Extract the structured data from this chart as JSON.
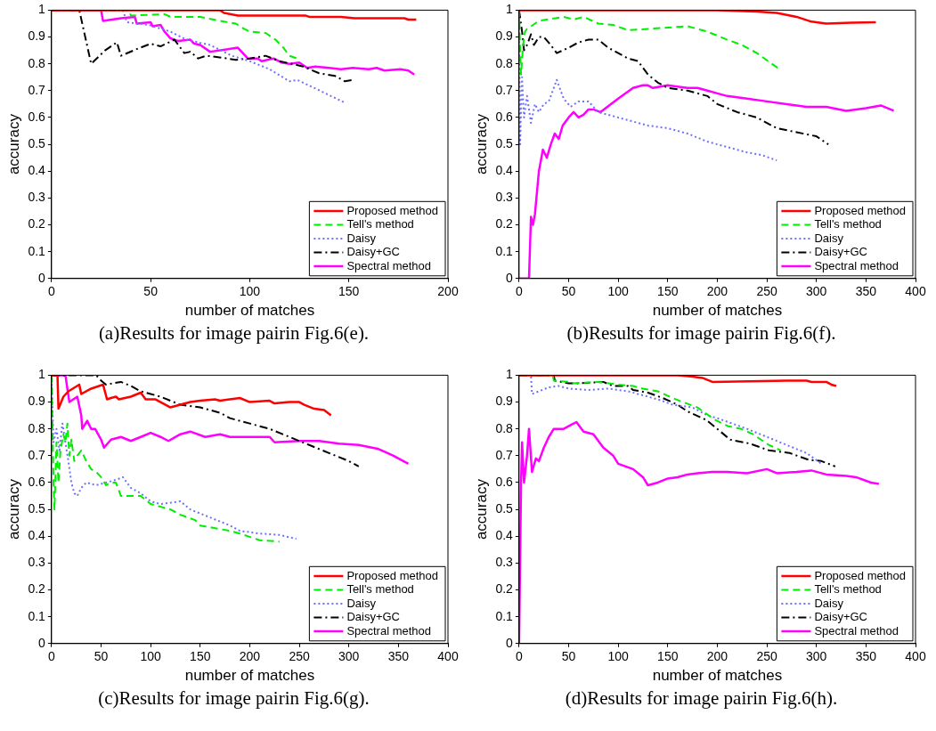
{
  "chart_data": [
    {
      "type": "line",
      "xlabel": "number of matches",
      "ylabel": "accuracy",
      "xlim": [
        0,
        200
      ],
      "xticks": [
        0,
        50,
        100,
        150,
        200
      ],
      "ylim": [
        0,
        1
      ],
      "yticks": [
        0,
        0.1,
        0.2,
        0.3,
        0.4,
        0.5,
        0.6,
        0.7,
        0.8,
        0.9,
        1
      ],
      "legend": "bottom right",
      "annotations": [
        "(a)Results for image pairin Fig.6(e)."
      ],
      "series": [
        {
          "name": "Proposed method",
          "color": "#ff0000",
          "line_style": "solid",
          "x": [
            0,
            85,
            87,
            94,
            128,
            130,
            146,
            153,
            178,
            180,
            184
          ],
          "values": [
            1,
            1,
            0.99,
            0.98,
            0.98,
            0.975,
            0.975,
            0.97,
            0.97,
            0.965,
            0.965
          ]
        },
        {
          "name": "Tell's method",
          "color": "#00ee00",
          "line_style": "dashed",
          "x": [
            0,
            39,
            40,
            57,
            60,
            75,
            78,
            85,
            93,
            96,
            100,
            108,
            113,
            117,
            120,
            124
          ],
          "values": [
            1,
            1,
            0.98,
            0.985,
            0.975,
            0.975,
            0.97,
            0.96,
            0.95,
            0.935,
            0.92,
            0.915,
            0.89,
            0.86,
            0.83,
            0.82
          ]
        },
        {
          "name": "Daisy",
          "color": "#6f6fff",
          "line_style": "dotted",
          "x": [
            0,
            36,
            38,
            49,
            60,
            68,
            80,
            91,
            100,
            110,
            120,
            124,
            134,
            148
          ],
          "values": [
            1,
            1,
            0.955,
            0.945,
            0.92,
            0.89,
            0.87,
            0.83,
            0.81,
            0.78,
            0.735,
            0.74,
            0.705,
            0.655
          ]
        },
        {
          "name": "Daisy+GC",
          "color": "#000000",
          "line_style": "dashdot",
          "x": [
            0,
            14,
            20,
            27,
            33,
            35,
            43,
            50,
            55,
            62,
            67,
            70,
            74,
            78,
            84,
            93,
            100,
            108,
            115,
            127,
            135,
            143,
            148,
            152
          ],
          "values": [
            1,
            1,
            0.8,
            0.85,
            0.88,
            0.83,
            0.855,
            0.875,
            0.865,
            0.89,
            0.84,
            0.845,
            0.82,
            0.83,
            0.825,
            0.815,
            0.82,
            0.83,
            0.81,
            0.79,
            0.765,
            0.755,
            0.735,
            0.74
          ]
        },
        {
          "name": "Spectral method",
          "color": "#ff00ff",
          "line_style": "solid",
          "x": [
            0,
            25,
            26,
            35,
            42,
            43,
            50,
            51,
            55,
            57,
            60,
            64,
            70,
            72,
            75,
            80,
            94,
            99,
            104,
            106,
            112,
            116,
            120,
            125,
            129,
            133,
            140,
            146,
            152,
            160,
            164,
            168,
            176,
            180,
            183
          ],
          "values": [
            1,
            1,
            0.96,
            0.97,
            0.975,
            0.95,
            0.955,
            0.94,
            0.945,
            0.92,
            0.895,
            0.885,
            0.89,
            0.875,
            0.87,
            0.845,
            0.86,
            0.82,
            0.82,
            0.81,
            0.82,
            0.805,
            0.8,
            0.805,
            0.785,
            0.79,
            0.785,
            0.78,
            0.785,
            0.78,
            0.785,
            0.775,
            0.78,
            0.775,
            0.76
          ]
        }
      ]
    },
    {
      "type": "line",
      "xlabel": "number of matches",
      "ylabel": "accuracy",
      "xlim": [
        0,
        400
      ],
      "xticks": [
        0,
        50,
        100,
        150,
        200,
        250,
        300,
        350,
        400
      ],
      "ylim": [
        0,
        1
      ],
      "yticks": [
        0,
        0.1,
        0.2,
        0.3,
        0.4,
        0.5,
        0.6,
        0.7,
        0.8,
        0.9,
        1
      ],
      "legend": "bottom right",
      "annotations": [
        "(b)Results for image pairin Fig.6(f)."
      ],
      "series": [
        {
          "name": "Proposed method",
          "color": "#ff0000",
          "line_style": "solid",
          "x": [
            0,
            200,
            240,
            260,
            280,
            295,
            310,
            335,
            360
          ],
          "values": [
            1,
            1,
            0.995,
            0.99,
            0.975,
            0.957,
            0.95,
            0.953,
            0.955
          ]
        },
        {
          "name": "Tell's method",
          "color": "#00ee00",
          "line_style": "dashed",
          "x": [
            0,
            1,
            2,
            4,
            6,
            8,
            20,
            45,
            55,
            65,
            80,
            95,
            110,
            130,
            150,
            170,
            190,
            210,
            225,
            240,
            255,
            263
          ],
          "values": [
            1,
            0.85,
            0.76,
            0.87,
            0.92,
            0.93,
            0.96,
            0.975,
            0.965,
            0.975,
            0.95,
            0.945,
            0.925,
            0.93,
            0.935,
            0.94,
            0.92,
            0.89,
            0.87,
            0.84,
            0.8,
            0.78
          ]
        },
        {
          "name": "Daisy",
          "color": "#6f6fff",
          "line_style": "dotted",
          "x": [
            0,
            1,
            3,
            5,
            8,
            12,
            16,
            20,
            25,
            30,
            38,
            45,
            52,
            60,
            70,
            80,
            100,
            110,
            130,
            150,
            170,
            190,
            210,
            230,
            245,
            260
          ],
          "values": [
            1,
            0.5,
            0.75,
            0.6,
            0.68,
            0.58,
            0.65,
            0.62,
            0.65,
            0.66,
            0.74,
            0.67,
            0.64,
            0.66,
            0.66,
            0.62,
            0.6,
            0.59,
            0.57,
            0.56,
            0.54,
            0.51,
            0.49,
            0.47,
            0.46,
            0.44
          ]
        },
        {
          "name": "Daisy+GC",
          "color": "#000000",
          "line_style": "dashdot",
          "x": [
            0,
            3,
            5,
            8,
            12,
            15,
            20,
            25,
            32,
            38,
            50,
            60,
            70,
            80,
            90,
            100,
            110,
            120,
            130,
            140,
            150,
            170,
            190,
            200,
            220,
            240,
            260,
            280,
            300,
            312
          ],
          "values": [
            1,
            0.92,
            0.85,
            0.87,
            0.91,
            0.87,
            0.9,
            0.9,
            0.87,
            0.84,
            0.86,
            0.88,
            0.89,
            0.89,
            0.86,
            0.84,
            0.82,
            0.81,
            0.76,
            0.73,
            0.71,
            0.7,
            0.68,
            0.65,
            0.62,
            0.6,
            0.56,
            0.545,
            0.53,
            0.5
          ]
        },
        {
          "name": "Spectral method",
          "color": "#ff00ff",
          "line_style": "solid",
          "x": [
            0,
            10,
            12,
            14,
            16,
            20,
            24,
            28,
            32,
            36,
            40,
            44,
            50,
            55,
            60,
            65,
            70,
            75,
            82,
            100,
            115,
            125,
            130,
            135,
            150,
            170,
            180,
            190,
            200,
            210,
            230,
            250,
            270,
            290,
            310,
            330,
            350,
            365,
            378
          ],
          "values": [
            0,
            0,
            0.23,
            0.2,
            0.24,
            0.4,
            0.48,
            0.45,
            0.5,
            0.54,
            0.52,
            0.57,
            0.6,
            0.62,
            0.6,
            0.61,
            0.63,
            0.63,
            0.62,
            0.67,
            0.71,
            0.72,
            0.72,
            0.71,
            0.72,
            0.71,
            0.71,
            0.7,
            0.69,
            0.68,
            0.67,
            0.66,
            0.65,
            0.64,
            0.64,
            0.625,
            0.635,
            0.645,
            0.625
          ]
        }
      ]
    },
    {
      "type": "line",
      "xlabel": "number of matches",
      "ylabel": "accuracy",
      "xlim": [
        0,
        400
      ],
      "xticks": [
        0,
        50,
        100,
        150,
        200,
        250,
        300,
        350,
        400
      ],
      "ylim": [
        0,
        1
      ],
      "yticks": [
        0,
        0.1,
        0.2,
        0.3,
        0.4,
        0.5,
        0.6,
        0.7,
        0.8,
        0.9,
        1
      ],
      "legend": "bottom right",
      "annotations": [
        "(c)Results for image pairin Fig.6(g)."
      ],
      "series": [
        {
          "name": "Proposed method",
          "color": "#ff0000",
          "line_style": "solid",
          "x": [
            0,
            6,
            7,
            12,
            17,
            28,
            30,
            40,
            52,
            56,
            60,
            65,
            68,
            80,
            90,
            95,
            105,
            110,
            120,
            140,
            150,
            165,
            170,
            190,
            200,
            220,
            225,
            240,
            250,
            255,
            265,
            275,
            282
          ],
          "values": [
            1,
            1,
            0.875,
            0.92,
            0.94,
            0.965,
            0.93,
            0.95,
            0.965,
            0.91,
            0.915,
            0.92,
            0.91,
            0.92,
            0.935,
            0.91,
            0.91,
            0.9,
            0.88,
            0.9,
            0.905,
            0.91,
            0.905,
            0.915,
            0.9,
            0.905,
            0.895,
            0.9,
            0.9,
            0.89,
            0.875,
            0.87,
            0.85
          ]
        },
        {
          "name": "Tell's method",
          "color": "#00ee00",
          "line_style": "dashed",
          "x": [
            0,
            2,
            3,
            5,
            7,
            9,
            12,
            14,
            16,
            18,
            20,
            23,
            26,
            30,
            35,
            40,
            45,
            50,
            55,
            60,
            65,
            70,
            80,
            90,
            100,
            120,
            130,
            145,
            150,
            165,
            180,
            190,
            210,
            230
          ],
          "values": [
            1,
            0.6,
            0.5,
            0.75,
            0.6,
            0.72,
            0.78,
            0.75,
            0.82,
            0.7,
            0.76,
            0.68,
            0.7,
            0.72,
            0.68,
            0.65,
            0.64,
            0.62,
            0.59,
            0.6,
            0.6,
            0.55,
            0.55,
            0.55,
            0.52,
            0.5,
            0.48,
            0.46,
            0.44,
            0.43,
            0.42,
            0.41,
            0.385,
            0.38
          ]
        },
        {
          "name": "Daisy",
          "color": "#6f6fff",
          "line_style": "dotted",
          "x": [
            0,
            2,
            5,
            8,
            11,
            14,
            17,
            20,
            23,
            26,
            30,
            35,
            45,
            55,
            65,
            72,
            80,
            90,
            100,
            110,
            130,
            140,
            160,
            180,
            190,
            210,
            230,
            247
          ],
          "values": [
            1,
            0.75,
            0.8,
            0.72,
            0.82,
            0.75,
            0.68,
            0.6,
            0.56,
            0.55,
            0.58,
            0.6,
            0.59,
            0.6,
            0.61,
            0.62,
            0.58,
            0.56,
            0.53,
            0.52,
            0.53,
            0.5,
            0.47,
            0.44,
            0.42,
            0.41,
            0.405,
            0.39
          ]
        },
        {
          "name": "Daisy+GC",
          "color": "#000000",
          "line_style": "dashdot",
          "x": [
            0,
            45,
            50,
            55,
            70,
            80,
            90,
            100,
            110,
            130,
            150,
            170,
            180,
            200,
            220,
            240,
            260,
            280,
            300,
            310
          ],
          "values": [
            1,
            1,
            0.98,
            0.965,
            0.975,
            0.96,
            0.94,
            0.93,
            0.92,
            0.89,
            0.88,
            0.86,
            0.84,
            0.82,
            0.8,
            0.77,
            0.74,
            0.71,
            0.68,
            0.66
          ]
        },
        {
          "name": "Spectral method",
          "color": "#ff00ff",
          "line_style": "solid",
          "x": [
            0,
            14,
            16,
            18,
            22,
            26,
            30,
            31,
            36,
            40,
            44,
            50,
            53,
            60,
            70,
            80,
            90,
            100,
            110,
            118,
            130,
            140,
            155,
            170,
            180,
            200,
            220,
            225,
            250,
            270,
            290,
            310,
            330,
            345,
            360
          ],
          "values": [
            1,
            1,
            0.95,
            0.9,
            0.91,
            0.92,
            0.85,
            0.8,
            0.83,
            0.8,
            0.8,
            0.76,
            0.73,
            0.76,
            0.77,
            0.755,
            0.77,
            0.785,
            0.77,
            0.755,
            0.78,
            0.79,
            0.77,
            0.78,
            0.77,
            0.77,
            0.77,
            0.75,
            0.755,
            0.755,
            0.745,
            0.74,
            0.725,
            0.7,
            0.67
          ]
        }
      ]
    },
    {
      "type": "line",
      "xlabel": "number of matches",
      "ylabel": "accuracy",
      "xlim": [
        0,
        400
      ],
      "xticks": [
        0,
        50,
        100,
        150,
        200,
        250,
        300,
        350,
        400
      ],
      "ylim": [
        0,
        1
      ],
      "yticks": [
        0,
        0.1,
        0.2,
        0.3,
        0.4,
        0.5,
        0.6,
        0.7,
        0.8,
        0.9,
        1
      ],
      "legend": "bottom right",
      "annotations": [
        "(d)Results for image pairin Fig.6(h)."
      ],
      "series": [
        {
          "name": "Proposed method",
          "color": "#ff0000",
          "line_style": "solid",
          "x": [
            0,
            160,
            175,
            185,
            195,
            270,
            290,
            295,
            310,
            315,
            320
          ],
          "values": [
            1,
            1,
            0.995,
            0.99,
            0.975,
            0.98,
            0.98,
            0.975,
            0.975,
            0.965,
            0.96
          ]
        },
        {
          "name": "Tell's method",
          "color": "#00ee00",
          "line_style": "dashed",
          "x": [
            0,
            34,
            35,
            50,
            55,
            80,
            100,
            115,
            125,
            140,
            155,
            165,
            180,
            197,
            211,
            224,
            236,
            252,
            264
          ],
          "values": [
            1,
            1,
            0.98,
            0.975,
            0.97,
            0.975,
            0.965,
            0.96,
            0.95,
            0.94,
            0.915,
            0.9,
            0.88,
            0.835,
            0.81,
            0.8,
            0.78,
            0.74,
            0.72
          ]
        },
        {
          "name": "Daisy",
          "color": "#6f6fff",
          "line_style": "dotted",
          "x": [
            0,
            12,
            13,
            20,
            30,
            40,
            50,
            70,
            90,
            110,
            120,
            140,
            155,
            175,
            190,
            200,
            215,
            230,
            250,
            270,
            290,
            305
          ],
          "values": [
            1,
            1,
            0.93,
            0.94,
            0.955,
            0.96,
            0.95,
            0.945,
            0.95,
            0.94,
            0.93,
            0.91,
            0.89,
            0.88,
            0.85,
            0.84,
            0.82,
            0.8,
            0.77,
            0.74,
            0.71,
            0.67
          ]
        },
        {
          "name": "Daisy+GC",
          "color": "#000000",
          "line_style": "dashdot",
          "x": [
            0,
            35,
            36,
            50,
            60,
            85,
            95,
            110,
            115,
            130,
            145,
            160,
            170,
            189,
            213,
            233,
            252,
            273,
            292,
            305,
            319
          ],
          "values": [
            1,
            1,
            0.98,
            0.97,
            0.97,
            0.975,
            0.96,
            0.96,
            0.945,
            0.935,
            0.915,
            0.89,
            0.865,
            0.833,
            0.76,
            0.745,
            0.72,
            0.71,
            0.685,
            0.68,
            0.66
          ]
        },
        {
          "name": "Spectral method",
          "color": "#ff00ff",
          "line_style": "solid",
          "x": [
            0,
            2,
            3,
            5,
            8,
            10,
            13,
            17,
            20,
            25,
            30,
            35,
            45,
            55,
            58,
            65,
            75,
            85,
            95,
            100,
            115,
            125,
            130,
            140,
            150,
            160,
            170,
            180,
            195,
            210,
            230,
            250,
            260,
            280,
            295,
            310,
            330,
            340,
            355,
            363
          ],
          "values": [
            0,
            0.6,
            0.75,
            0.6,
            0.7,
            0.8,
            0.64,
            0.69,
            0.68,
            0.73,
            0.77,
            0.8,
            0.8,
            0.82,
            0.825,
            0.79,
            0.78,
            0.73,
            0.7,
            0.67,
            0.65,
            0.62,
            0.59,
            0.6,
            0.615,
            0.62,
            0.63,
            0.635,
            0.64,
            0.64,
            0.635,
            0.65,
            0.635,
            0.64,
            0.645,
            0.63,
            0.625,
            0.62,
            0.6,
            0.595
          ]
        }
      ]
    }
  ]
}
